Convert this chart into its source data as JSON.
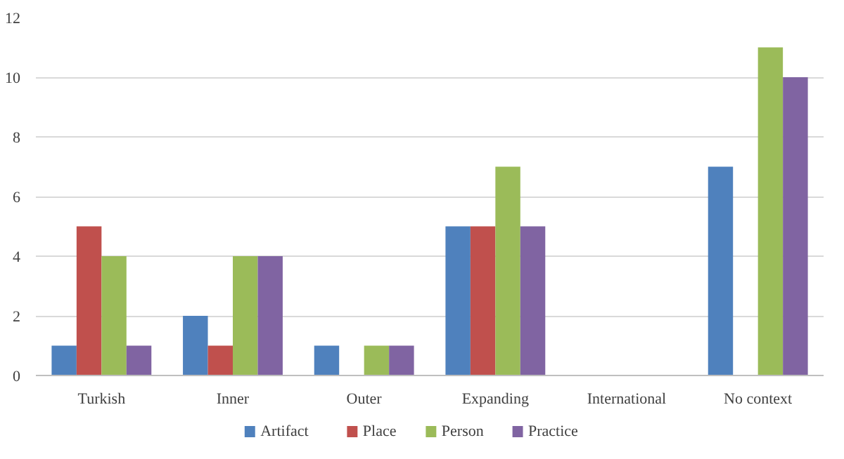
{
  "chart_data": {
    "type": "bar",
    "categories": [
      "Turkish",
      "Inner",
      "Outer",
      "Expanding",
      "International",
      "No context"
    ],
    "series": [
      {
        "name": "Artifact",
        "color": "#4f81bd",
        "values": [
          1,
          2,
          1,
          5,
          0,
          7
        ]
      },
      {
        "name": "Place",
        "color": "#c0504d",
        "values": [
          5,
          1,
          0,
          5,
          0,
          0
        ]
      },
      {
        "name": "Person",
        "color": "#9bbb59",
        "values": [
          4,
          4,
          1,
          7,
          0,
          11
        ]
      },
      {
        "name": "Practice",
        "color": "#8064a2",
        "values": [
          1,
          4,
          1,
          5,
          0,
          10
        ]
      }
    ],
    "ylim": [
      0,
      12
    ],
    "yticks": [
      0,
      2,
      4,
      6,
      8,
      10,
      12
    ],
    "grid": "y",
    "legend": "bottom"
  }
}
